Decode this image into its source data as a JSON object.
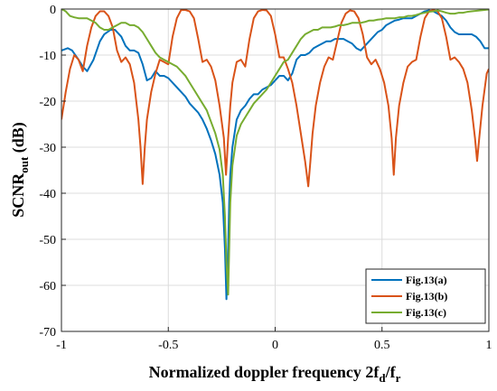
{
  "chart_data": {
    "type": "line",
    "title": "",
    "xlabel": {
      "main": "Normalized doppler frequency 2f",
      "sub1": "d",
      "mid": "/f",
      "sub2": "r"
    },
    "ylabel": {
      "main": "SCNR",
      "sub": "out",
      "unit": " (dB)"
    },
    "xlim": [
      -1,
      1
    ],
    "ylim": [
      -70,
      0
    ],
    "xticks": [
      -1,
      -0.5,
      0,
      0.5,
      1
    ],
    "xtick_labels": [
      "-1",
      "-0.5",
      "0",
      "0.5",
      "1"
    ],
    "yticks": [
      0,
      -10,
      -20,
      -30,
      -40,
      -50,
      -60,
      -70
    ],
    "ytick_labels": [
      "0",
      "-10",
      "-20",
      "-30",
      "-40",
      "-50",
      "-60",
      "-70"
    ],
    "grid": true,
    "legend_position": "bottom-right",
    "series": [
      {
        "name": "Fig.13(a)",
        "color": "#0072BD",
        "x": [
          -1,
          -0.97,
          -0.95,
          -0.92,
          -0.9,
          -0.88,
          -0.85,
          -0.82,
          -0.8,
          -0.77,
          -0.75,
          -0.72,
          -0.7,
          -0.68,
          -0.66,
          -0.64,
          -0.62,
          -0.6,
          -0.58,
          -0.56,
          -0.54,
          -0.52,
          -0.5,
          -0.48,
          -0.46,
          -0.44,
          -0.42,
          -0.4,
          -0.38,
          -0.36,
          -0.34,
          -0.32,
          -0.3,
          -0.28,
          -0.26,
          -0.245,
          -0.235,
          -0.228,
          -0.22,
          -0.215,
          -0.21,
          -0.2,
          -0.18,
          -0.16,
          -0.14,
          -0.12,
          -0.1,
          -0.08,
          -0.06,
          -0.04,
          -0.02,
          0,
          0.02,
          0.04,
          0.06,
          0.08,
          0.1,
          0.12,
          0.14,
          0.16,
          0.18,
          0.2,
          0.22,
          0.24,
          0.26,
          0.28,
          0.3,
          0.32,
          0.34,
          0.36,
          0.38,
          0.4,
          0.42,
          0.44,
          0.46,
          0.48,
          0.5,
          0.52,
          0.54,
          0.56,
          0.58,
          0.6,
          0.62,
          0.64,
          0.66,
          0.68,
          0.7,
          0.72,
          0.74,
          0.76,
          0.78,
          0.8,
          0.82,
          0.84,
          0.86,
          0.88,
          0.9,
          0.92,
          0.94,
          0.96,
          0.98,
          1
        ],
        "y": [
          -9,
          -8.5,
          -9,
          -11,
          -12.5,
          -13.5,
          -11,
          -7,
          -5.5,
          -4.5,
          -4.5,
          -6,
          -8,
          -9,
          -9,
          -9.5,
          -12,
          -15.5,
          -15,
          -13.5,
          -14.5,
          -14.5,
          -15,
          -16,
          -17,
          -18,
          -19,
          -20.5,
          -21.5,
          -22.5,
          -24,
          -26,
          -28.5,
          -31.5,
          -36,
          -42,
          -52,
          -63,
          -52,
          -42,
          -36,
          -30,
          -24,
          -22,
          -21,
          -19.5,
          -18.5,
          -18.5,
          -17.5,
          -17,
          -16.5,
          -15.5,
          -14.5,
          -14.5,
          -15.5,
          -14,
          -11,
          -10,
          -10,
          -9.5,
          -8.5,
          -8,
          -7.5,
          -7,
          -7,
          -6.5,
          -6.5,
          -6.5,
          -7,
          -7.5,
          -8.5,
          -9,
          -8,
          -7,
          -6,
          -5,
          -4.5,
          -3.5,
          -3,
          -2.5,
          -2.3,
          -2,
          -2,
          -2,
          -1.5,
          -1,
          -0.5,
          -0.3,
          -0.5,
          -1,
          -1.5,
          -2.5,
          -4,
          -5,
          -5.5,
          -5.5,
          -5.5,
          -5.5,
          -6,
          -7,
          -8.5,
          -8.5
        ]
      },
      {
        "name": "Fig.13(b)",
        "color": "#D95319",
        "x": [
          -1,
          -0.98,
          -0.96,
          -0.94,
          -0.92,
          -0.9,
          -0.88,
          -0.86,
          -0.84,
          -0.82,
          -0.8,
          -0.78,
          -0.76,
          -0.74,
          -0.72,
          -0.7,
          -0.68,
          -0.66,
          -0.64,
          -0.63,
          -0.62,
          -0.61,
          -0.6,
          -0.58,
          -0.56,
          -0.54,
          -0.52,
          -0.5,
          -0.48,
          -0.46,
          -0.44,
          -0.42,
          -0.4,
          -0.38,
          -0.36,
          -0.34,
          -0.32,
          -0.3,
          -0.28,
          -0.26,
          -0.24,
          -0.23,
          -0.22,
          -0.21,
          -0.2,
          -0.18,
          -0.16,
          -0.14,
          -0.12,
          -0.1,
          -0.08,
          -0.06,
          -0.04,
          -0.02,
          0,
          0.02,
          0.04,
          0.06,
          0.08,
          0.1,
          0.12,
          0.14,
          0.155,
          0.165,
          0.175,
          0.19,
          0.21,
          0.23,
          0.25,
          0.27,
          0.29,
          0.31,
          0.33,
          0.35,
          0.37,
          0.39,
          0.41,
          0.43,
          0.45,
          0.47,
          0.49,
          0.51,
          0.53,
          0.545,
          0.555,
          0.565,
          0.58,
          0.6,
          0.62,
          0.64,
          0.66,
          0.68,
          0.7,
          0.72,
          0.74,
          0.76,
          0.78,
          0.8,
          0.82,
          0.84,
          0.86,
          0.88,
          0.9,
          0.92,
          0.935,
          0.945,
          0.955,
          0.97,
          0.99,
          1
        ],
        "y": [
          -24,
          -18,
          -13,
          -10,
          -11,
          -13.5,
          -8,
          -4,
          -1.5,
          -0.5,
          -0.5,
          -1.5,
          -4,
          -9,
          -11.5,
          -10.5,
          -12,
          -16,
          -24,
          -30,
          -38,
          -30,
          -24,
          -18,
          -14,
          -11,
          -11.5,
          -12,
          -6,
          -2,
          -0.2,
          -0.2,
          -0.5,
          -2,
          -6.5,
          -11.5,
          -11,
          -12.5,
          -15.5,
          -21,
          -28,
          -36,
          -28,
          -21,
          -16,
          -11.5,
          -11,
          -12.5,
          -6.5,
          -2,
          -0.5,
          -0.2,
          -0.3,
          -1.5,
          -5.5,
          -10.5,
          -10.5,
          -13,
          -16,
          -21,
          -27,
          -33,
          -38.5,
          -33,
          -27,
          -21,
          -16,
          -12.5,
          -10.5,
          -11,
          -7,
          -3,
          -1,
          -0.3,
          -0.5,
          -2,
          -5.5,
          -10.5,
          -12,
          -11,
          -13,
          -16,
          -21,
          -28,
          -36,
          -28,
          -21,
          -16,
          -12.5,
          -11.5,
          -11,
          -6,
          -2,
          -0.5,
          -0.2,
          -0.5,
          -2,
          -6,
          -11,
          -10.5,
          -11.5,
          -13,
          -16,
          -22,
          -28,
          -33,
          -28,
          -21,
          -14,
          -13
        ]
      },
      {
        "name": "Fig.13(c)",
        "color": "#77AC30",
        "x": [
          -1,
          -0.98,
          -0.96,
          -0.94,
          -0.92,
          -0.9,
          -0.88,
          -0.86,
          -0.84,
          -0.82,
          -0.8,
          -0.78,
          -0.76,
          -0.74,
          -0.72,
          -0.7,
          -0.68,
          -0.66,
          -0.64,
          -0.62,
          -0.6,
          -0.58,
          -0.56,
          -0.54,
          -0.52,
          -0.5,
          -0.48,
          -0.46,
          -0.44,
          -0.42,
          -0.4,
          -0.38,
          -0.36,
          -0.34,
          -0.32,
          -0.3,
          -0.28,
          -0.26,
          -0.245,
          -0.235,
          -0.228,
          -0.22,
          -0.215,
          -0.21,
          -0.2,
          -0.18,
          -0.16,
          -0.14,
          -0.12,
          -0.1,
          -0.08,
          -0.06,
          -0.04,
          -0.02,
          0,
          0.02,
          0.04,
          0.06,
          0.08,
          0.1,
          0.12,
          0.14,
          0.16,
          0.18,
          0.2,
          0.22,
          0.24,
          0.26,
          0.28,
          0.3,
          0.32,
          0.34,
          0.36,
          0.38,
          0.4,
          0.42,
          0.44,
          0.46,
          0.48,
          0.5,
          0.52,
          0.54,
          0.56,
          0.58,
          0.6,
          0.62,
          0.64,
          0.66,
          0.68,
          0.7,
          0.72,
          0.74,
          0.76,
          0.78,
          0.8,
          0.82,
          0.84,
          0.86,
          0.88,
          0.9,
          0.92,
          0.94,
          0.96,
          0.98,
          1
        ],
        "y": [
          0,
          -0.5,
          -1.5,
          -1.8,
          -2,
          -2,
          -2,
          -2.5,
          -3,
          -4,
          -4.5,
          -4.5,
          -4,
          -3.5,
          -3,
          -3,
          -3.5,
          -3.5,
          -4,
          -5,
          -6.5,
          -8,
          -9.5,
          -10.5,
          -11,
          -11.5,
          -12,
          -12.5,
          -13.5,
          -14.5,
          -16,
          -17.5,
          -19,
          -20.5,
          -22,
          -24.5,
          -27,
          -30.5,
          -36,
          -45,
          -55,
          -62,
          -52,
          -42,
          -34,
          -27.5,
          -25,
          -23.5,
          -22,
          -20.5,
          -19.5,
          -18.5,
          -17.5,
          -16,
          -14.5,
          -13,
          -11.5,
          -11,
          -9.5,
          -8,
          -6.5,
          -5.5,
          -5,
          -4.5,
          -4.5,
          -4,
          -4,
          -4,
          -3.8,
          -3.5,
          -3.5,
          -3.3,
          -3,
          -3,
          -3,
          -2.8,
          -2.5,
          -2.5,
          -2.3,
          -2.2,
          -2,
          -2,
          -2,
          -1.8,
          -1.8,
          -1.5,
          -1.5,
          -1.3,
          -1,
          -0.8,
          -0.6,
          -0.5,
          -0.3,
          -0.5,
          -0.8,
          -1,
          -1,
          -0.8,
          -0.8,
          -0.6,
          -0.5,
          -0.4,
          -0.3,
          -0.2,
          -0.1
        ]
      }
    ]
  }
}
